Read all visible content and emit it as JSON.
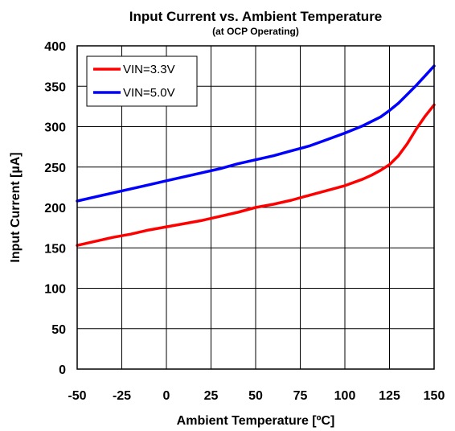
{
  "chart_data": {
    "type": "line",
    "title": "Input Current vs. Ambient Temperature",
    "subtitle": "(at OCP Operating)",
    "xlabel": "Ambient Temperature [ºC]",
    "ylabel": "Input  Current [µA]",
    "xlim": [
      -50,
      150
    ],
    "ylim": [
      0,
      400
    ],
    "xticks": [
      -50,
      -25,
      0,
      25,
      50,
      75,
      100,
      125,
      150
    ],
    "yticks": [
      0,
      50,
      100,
      150,
      200,
      250,
      300,
      350,
      400
    ],
    "grid": true,
    "legend_position": "top-left",
    "series": [
      {
        "name": "VIN=3.3V",
        "color": "#ff0000",
        "x": [
          -50,
          -40,
          -30,
          -20,
          -10,
          0,
          10,
          20,
          30,
          40,
          50,
          60,
          70,
          80,
          90,
          100,
          110,
          115,
          120,
          125,
          130,
          135,
          140,
          145,
          150
        ],
        "y": [
          153,
          158,
          163,
          167,
          172,
          176,
          180,
          184,
          189,
          194,
          200,
          204,
          209,
          215,
          221,
          227,
          235,
          240,
          246,
          253,
          264,
          279,
          297,
          313,
          327
        ]
      },
      {
        "name": "VIN=5.0V",
        "color": "#0000ff",
        "x": [
          -50,
          -40,
          -30,
          -20,
          -10,
          0,
          10,
          20,
          30,
          40,
          50,
          60,
          70,
          80,
          90,
          100,
          110,
          120,
          125,
          130,
          135,
          140,
          145,
          150
        ],
        "y": [
          208,
          213,
          218,
          223,
          228,
          233,
          238,
          243,
          248,
          254,
          259,
          264,
          270,
          276,
          284,
          292,
          301,
          312,
          320,
          329,
          340,
          351,
          363,
          375
        ]
      }
    ]
  }
}
